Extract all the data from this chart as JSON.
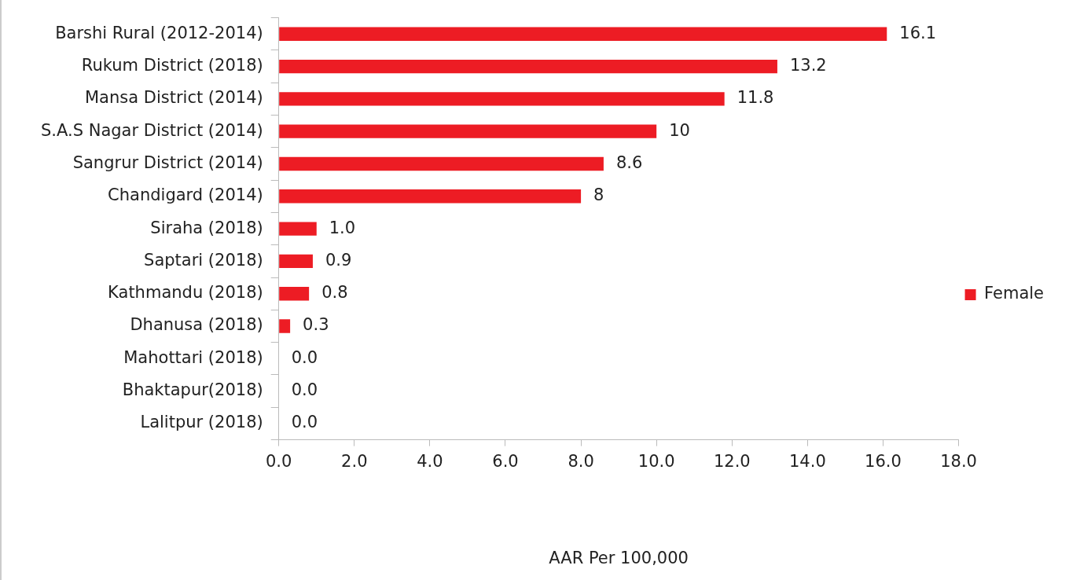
{
  "chart_data": {
    "type": "bar",
    "orientation": "horizontal",
    "xlabel": "AAR Per 100,000",
    "categories": [
      "Barshi Rural (2012-2014)",
      "Rukum District (2018)",
      "Mansa District (2014)",
      "S.A.S Nagar District (2014)",
      "Sangrur District (2014)",
      "Chandigard (2014)",
      "Siraha (2018)",
      "Saptari (2018)",
      "Kathmandu (2018)",
      "Dhanusa (2018)",
      "Mahottari (2018)",
      "Bhaktapur(2018)",
      "Lalitpur (2018)"
    ],
    "series": [
      {
        "name": "Female",
        "color": "#ed1c24",
        "values": [
          16.1,
          13.2,
          11.8,
          10,
          8.6,
          8,
          1.0,
          0.9,
          0.8,
          0.3,
          0.0,
          0.0,
          0.0
        ],
        "value_labels": [
          "16.1",
          "13.2",
          "11.8",
          "10",
          "8.6",
          "8",
          "1.0",
          "0.9",
          "0.8",
          "0.3",
          "0.0",
          "0.0",
          "0.0"
        ]
      }
    ],
    "xlim": [
      0,
      18
    ],
    "xticks": [
      {
        "value": 0,
        "label": "0.0"
      },
      {
        "value": 2,
        "label": "2.0"
      },
      {
        "value": 4,
        "label": "4.0"
      },
      {
        "value": 6,
        "label": "6.0"
      },
      {
        "value": 8,
        "label": "8.0"
      },
      {
        "value": 10,
        "label": "10.0"
      },
      {
        "value": 12,
        "label": "12.0"
      },
      {
        "value": 14,
        "label": "14.0"
      },
      {
        "value": 16,
        "label": "16.0"
      },
      {
        "value": 18,
        "label": "18.0"
      }
    ],
    "grid": false,
    "legend": "right"
  }
}
